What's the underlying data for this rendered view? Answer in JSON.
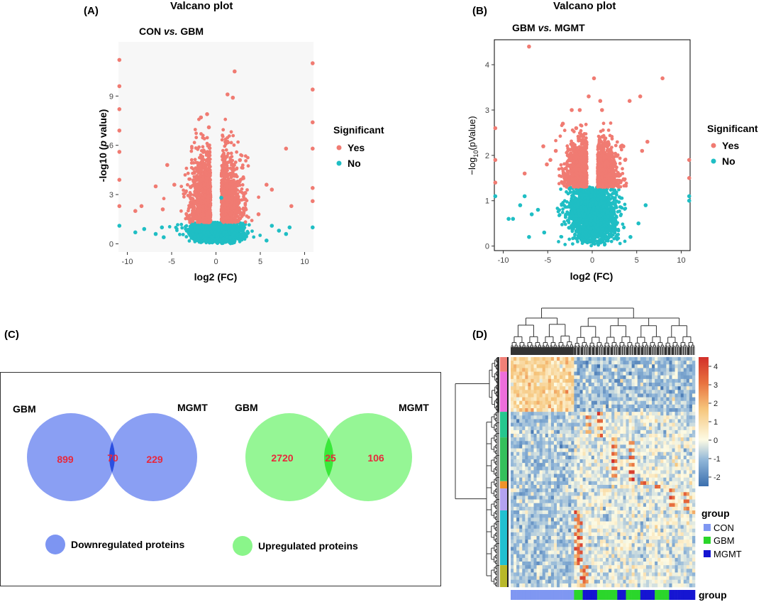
{
  "panels": {
    "A": {
      "letter": "(A)",
      "title": "Valcano plot",
      "subtitle_a": "CON ",
      "subtitle_b": "vs.",
      "subtitle_c": " GBM"
    },
    "B": {
      "letter": "(B)",
      "title": "Valcano plot",
      "subtitle_a": "GBM ",
      "subtitle_b": "vs.",
      "subtitle_c": " MGMT"
    },
    "C": {
      "letter": "(C)"
    },
    "D": {
      "letter": "(D)"
    }
  },
  "colors": {
    "yes": "#F07B72",
    "no": "#1FBEC4",
    "down": "#7D95F2",
    "overlap_down": "#2C4FE0",
    "up": "#8AF58A",
    "overlap_up": "#3AE83A",
    "count_text": "#E8283C"
  },
  "chart_data": [
    {
      "id": "volcano-A",
      "type": "scatter",
      "xlabel": "log2 (FC)",
      "ylabel_a": "-log10 (",
      "ylabel_b": "p",
      "ylabel_c": " value)",
      "xticks": [
        -10,
        -5,
        0,
        5,
        10
      ],
      "yticks": [
        0,
        3,
        6,
        9
      ],
      "xlim": [
        -11,
        11
      ],
      "ylim": [
        -0.5,
        12.3
      ],
      "legend_title": "Significant",
      "legend": [
        "Yes",
        "No"
      ],
      "legend_position": "right",
      "threshold_y": 1.3,
      "series": [
        {
          "name": "Yes",
          "points": [
            [
              -10.9,
              11.2
            ],
            [
              -10.9,
              9.6
            ],
            [
              -10.9,
              8.2
            ],
            [
              -10.9,
              6.9
            ],
            [
              -10.9,
              5.6
            ],
            [
              -10.9,
              3.9
            ],
            [
              -10.9,
              2.3
            ],
            [
              10.9,
              11.0
            ],
            [
              10.9,
              9.4
            ],
            [
              10.9,
              7.4
            ],
            [
              10.9,
              5.8
            ],
            [
              10.9,
              3.4
            ],
            [
              10.9,
              2.6
            ],
            [
              2.1,
              10.5
            ],
            [
              1.3,
              9.1
            ],
            [
              1.9,
              8.9
            ],
            [
              -1.0,
              7.9
            ],
            [
              -1.7,
              7.7
            ],
            [
              -0.8,
              7.1
            ],
            [
              7.9,
              5.8
            ],
            [
              -5.5,
              4.8
            ],
            [
              5.7,
              3.6
            ],
            [
              6.3,
              3.3
            ],
            [
              -4.7,
              3.6
            ],
            [
              -6.8,
              3.5
            ],
            [
              -8.4,
              2.3
            ],
            [
              8.5,
              2.3
            ],
            [
              -6.0,
              2.1
            ],
            [
              -9.1,
              2.0
            ],
            [
              4.8,
              1.8
            ],
            [
              3.3,
              3.1
            ],
            [
              2.7,
              5.1
            ]
          ]
        },
        {
          "name": "No",
          "points": [
            [
              -10.9,
              1.1
            ],
            [
              10.9,
              1.0
            ],
            [
              -9.1,
              0.7
            ],
            [
              -8.1,
              0.9
            ],
            [
              -6.8,
              0.6
            ],
            [
              -5.9,
              0.4
            ],
            [
              6.3,
              1.1
            ],
            [
              7.1,
              0.8
            ],
            [
              8.3,
              1.0
            ],
            [
              7.9,
              0.6
            ],
            [
              5.7,
              0.2
            ],
            [
              -6.1,
              1.0
            ],
            [
              0.6,
              2.8
            ]
          ]
        }
      ]
    },
    {
      "id": "volcano-B",
      "type": "scatter",
      "xlabel": "log2 (FC)",
      "ylabel_a": "−log",
      "ylabel_b": "10",
      "ylabel_c": "(pValue)",
      "xticks": [
        -10,
        -5,
        0,
        5,
        10
      ],
      "yticks": [
        0,
        1,
        2,
        3,
        4
      ],
      "xlim": [
        -11,
        11
      ],
      "ylim": [
        -0.1,
        4.55
      ],
      "legend_title": "Significant",
      "legend": [
        "Yes",
        "No"
      ],
      "legend_position": "right",
      "threshold_y": 1.3,
      "series": [
        {
          "name": "Yes",
          "points": [
            [
              -7.1,
              4.4
            ],
            [
              0.2,
              3.7
            ],
            [
              7.9,
              3.7
            ],
            [
              5.4,
              3.3
            ],
            [
              4.2,
              3.2
            ],
            [
              -0.4,
              3.3
            ],
            [
              0.9,
              3.2
            ],
            [
              1.1,
              3.0
            ],
            [
              -1.4,
              3.0
            ],
            [
              -2.3,
              3.0
            ],
            [
              -3.3,
              2.7
            ],
            [
              6.2,
              2.3
            ],
            [
              5.6,
              2.1
            ],
            [
              3.5,
              2.2
            ],
            [
              3.7,
              1.9
            ],
            [
              -5.5,
              2.2
            ],
            [
              -4.1,
              2.1
            ],
            [
              -4.7,
              1.9
            ],
            [
              -5.1,
              1.8
            ],
            [
              2.7,
              2.0
            ],
            [
              -2.2,
              2.2
            ],
            [
              -1.8,
              2.6
            ],
            [
              -7.6,
              1.6
            ],
            [
              -10.9,
              2.6
            ],
            [
              -10.9,
              1.9
            ],
            [
              10.9,
              1.9
            ],
            [
              10.9,
              1.5
            ],
            [
              -10.9,
              1.4
            ]
          ]
        },
        {
          "name": "No",
          "points": [
            [
              -10.9,
              1.1
            ],
            [
              10.9,
              1.1
            ],
            [
              10.9,
              1.0
            ],
            [
              -9.4,
              0.6
            ],
            [
              -8.9,
              0.6
            ],
            [
              -8.1,
              0.9
            ],
            [
              -7.6,
              1.1
            ],
            [
              -6.8,
              0.7
            ],
            [
              -6.1,
              0.8
            ],
            [
              -7.1,
              0.2
            ],
            [
              -5.4,
              0.3
            ],
            [
              6.0,
              0.9
            ],
            [
              4.3,
              0.2
            ],
            [
              5.2,
              0.5
            ]
          ]
        }
      ]
    },
    {
      "id": "venn-down",
      "type": "venn",
      "sets": [
        "GBM",
        "MGMT"
      ],
      "values": {
        "only_left": 899,
        "both": 70,
        "only_right": 229
      },
      "legend": "Downregulated proteins"
    },
    {
      "id": "venn-up",
      "type": "venn",
      "sets": [
        "GBM",
        "MGMT"
      ],
      "values": {
        "only_left": 2720,
        "both": 25,
        "only_right": 106
      },
      "legend": "Upregulated proteins"
    },
    {
      "id": "heatmap-D",
      "type": "heatmap",
      "color_scale": {
        "min": -2.5,
        "max": 4.5,
        "ticks": [
          4,
          3,
          2,
          1,
          0,
          -1,
          -2
        ],
        "low": "#3C6FAE",
        "mid": "#FDFBE4",
        "high": "#D22F2A"
      },
      "column_groups": [
        "CON",
        "CON",
        "CON",
        "CON",
        "CON",
        "CON",
        "CON",
        "CON",
        "CON",
        "CON",
        "CON",
        "CON",
        "CON",
        "CON",
        "CON",
        "CON",
        "CON",
        "CON",
        "CON",
        "CON",
        "CON",
        "CON",
        "GBM",
        "GBM",
        "GBM",
        "MGMT",
        "MGMT",
        "MGMT",
        "MGMT",
        "MGMT",
        "GBM",
        "GBM",
        "GBM",
        "GBM",
        "GBM",
        "GBM",
        "GBM",
        "MGMT",
        "MGMT",
        "MGMT",
        "GBM",
        "GBM",
        "GBM",
        "GBM",
        "GBM",
        "MGMT",
        "MGMT",
        "MGMT",
        "MGMT",
        "MGMT",
        "GBM",
        "GBM",
        "GBM",
        "GBM",
        "GBM",
        "MGMT",
        "MGMT",
        "MGMT",
        "MGMT",
        "MGMT",
        "MGMT",
        "MGMT",
        "MGMT",
        "MGMT"
      ],
      "group_legend_title": "group",
      "group_legend": [
        {
          "name": "CON",
          "color": "#7F97F2"
        },
        {
          "name": "GBM",
          "color": "#2BD62B"
        },
        {
          "name": "MGMT",
          "color": "#1515D2"
        }
      ],
      "group_bar_label": "group",
      "row_clusters": [
        {
          "color": "#F08078",
          "fraction": 0.06
        },
        {
          "color": "#EE6EDB",
          "fraction": 0.15
        },
        {
          "color": "#26C78E",
          "fraction": 0.1
        },
        {
          "color": "#35C05C",
          "fraction": 0.17
        },
        {
          "color": "#F0932A",
          "fraction": 0.035
        },
        {
          "color": "#B3A2F0",
          "fraction": 0.085
        },
        {
          "color": "#21C0D0",
          "fraction": 0.21
        },
        {
          "color": "#B8B82A",
          "fraction": 0.09
        }
      ]
    }
  ]
}
